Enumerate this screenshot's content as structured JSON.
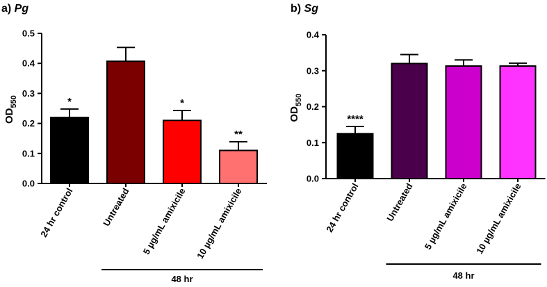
{
  "chart_data": [
    {
      "type": "bar",
      "panel_letter": "a)",
      "title": "Pg",
      "ylabel": "OD",
      "ylabel_sub": "550",
      "ylim": [
        0,
        0.5
      ],
      "yticks": [
        "0.0",
        "0.1",
        "0.2",
        "0.3",
        "0.4",
        "0.5"
      ],
      "categories": [
        "24 hr control",
        "Untreated",
        "5 µg/mL amixicile",
        "10 µg/mL amixicile"
      ],
      "values": [
        0.22,
        0.407,
        0.21,
        0.11
      ],
      "errors": [
        0.028,
        0.046,
        0.033,
        0.029
      ],
      "bar_colors": [
        "#000000",
        "#7a0000",
        "#ff0000",
        "#ff7070"
      ],
      "significance": [
        "*",
        "",
        "*",
        "**"
      ],
      "group_label": "48 hr",
      "group_categories": [
        1,
        3
      ]
    },
    {
      "type": "bar",
      "panel_letter": "b)",
      "title": "Sg",
      "ylabel": "OD",
      "ylabel_sub": "550",
      "ylim": [
        0,
        0.4
      ],
      "yticks": [
        "0.0",
        "0.1",
        "0.2",
        "0.3",
        "0.4"
      ],
      "categories": [
        "24 hr control",
        "Untreated",
        "5 µg/mL amixicile",
        "10 µg/mL amixicile"
      ],
      "values": [
        0.125,
        0.32,
        0.313,
        0.313
      ],
      "errors": [
        0.02,
        0.025,
        0.017,
        0.008
      ],
      "bar_colors": [
        "#000000",
        "#4b004b",
        "#cc00cc",
        "#ff33ff"
      ],
      "significance": [
        "****",
        "",
        "",
        ""
      ],
      "group_label": "48 hr",
      "group_categories": [
        1,
        3
      ]
    }
  ]
}
